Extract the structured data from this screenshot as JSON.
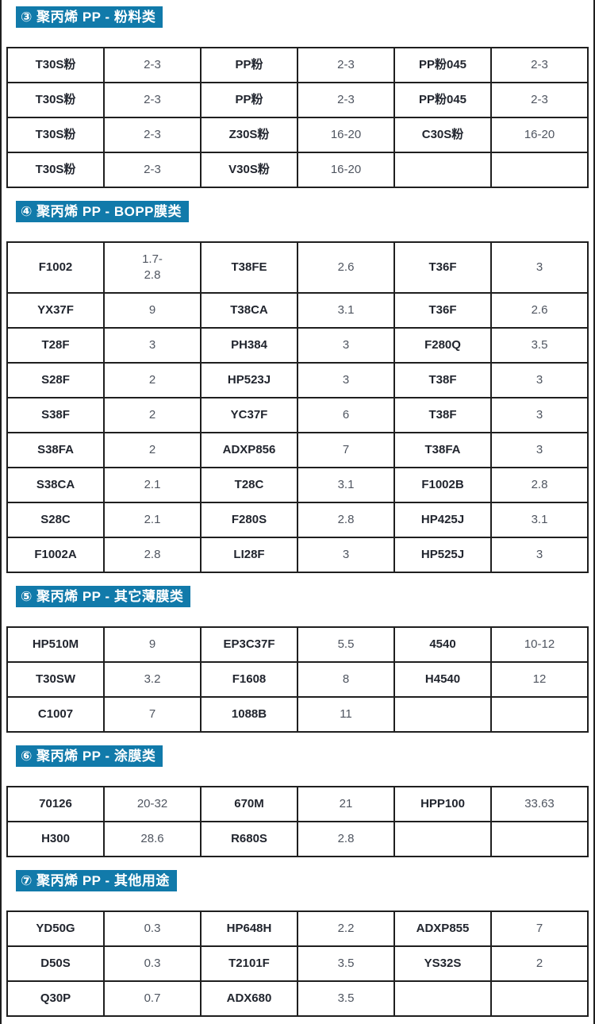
{
  "page": {
    "colors": {
      "section_header_bg": "#117aaa",
      "section_header_text": "#ffffff",
      "product_name_text": "#21252e",
      "product_value_text": "#4f5560",
      "table_border": "#1f1f1f"
    },
    "sections": [
      {
        "title": "③ 聚丙烯 PP - 粉料类",
        "rows": [
          [
            "T30S粉",
            "2-3",
            "PP粉",
            "2-3",
            "PP粉045",
            "2-3"
          ],
          [
            "T30S粉",
            "2-3",
            "PP粉",
            "2-3",
            "PP粉045",
            "2-3"
          ],
          [
            "T30S粉",
            "2-3",
            "Z30S粉",
            "16-20",
            "C30S粉",
            "16-20"
          ],
          [
            "T30S粉",
            "2-3",
            "V30S粉",
            "16-20",
            "",
            ""
          ]
        ]
      },
      {
        "title": "④ 聚丙烯 PP - BOPP膜类",
        "rows": [
          [
            "F1002",
            "1.7-\n2.8",
            "T38FE",
            "2.6",
            "T36F",
            "3"
          ],
          [
            "YX37F",
            "9",
            "T38CA",
            "3.1",
            "T36F",
            "2.6"
          ],
          [
            "T28F",
            "3",
            "PH384",
            "3",
            "F280Q",
            "3.5"
          ],
          [
            "S28F",
            "2",
            "HP523J",
            "3",
            "T38F",
            "3"
          ],
          [
            "S38F",
            "2",
            "YC37F",
            "6",
            "T38F",
            "3"
          ],
          [
            "S38FA",
            "2",
            "ADXP856",
            "7",
            "T38FA",
            "3"
          ],
          [
            "S38CA",
            "2.1",
            "T28C",
            "3.1",
            "F1002B",
            "2.8"
          ],
          [
            "S28C",
            "2.1",
            "F280S",
            "2.8",
            "HP425J",
            "3.1"
          ],
          [
            "F1002A",
            "2.8",
            "LI28F",
            "3",
            "HP525J",
            "3"
          ]
        ]
      },
      {
        "title": "⑤ 聚丙烯 PP - 其它薄膜类",
        "rows": [
          [
            "HP510M",
            "9",
            "EP3C37F",
            "5.5",
            "4540",
            "10-12"
          ],
          [
            "T30SW",
            "3.2",
            "F1608",
            "8",
            "H4540",
            "12"
          ],
          [
            "C1007",
            "7",
            "1088B",
            "11",
            "",
            ""
          ]
        ]
      },
      {
        "title": "⑥ 聚丙烯 PP - 涂膜类",
        "rows": [
          [
            "70126",
            "20-32",
            "670M",
            "21",
            "HPP100",
            "33.63"
          ],
          [
            "H300",
            "28.6",
            "R680S",
            "2.8",
            "",
            ""
          ]
        ]
      },
      {
        "title": "⑦ 聚丙烯 PP - 其他用途",
        "rows": [
          [
            "YD50G",
            "0.3",
            "HP648H",
            "2.2",
            "ADXP855",
            "7"
          ],
          [
            "D50S",
            "0.3",
            "T2101F",
            "3.5",
            "YS32S",
            "2"
          ],
          [
            "Q30P",
            "0.7",
            "ADX680",
            "3.5",
            "",
            ""
          ]
        ]
      }
    ]
  }
}
